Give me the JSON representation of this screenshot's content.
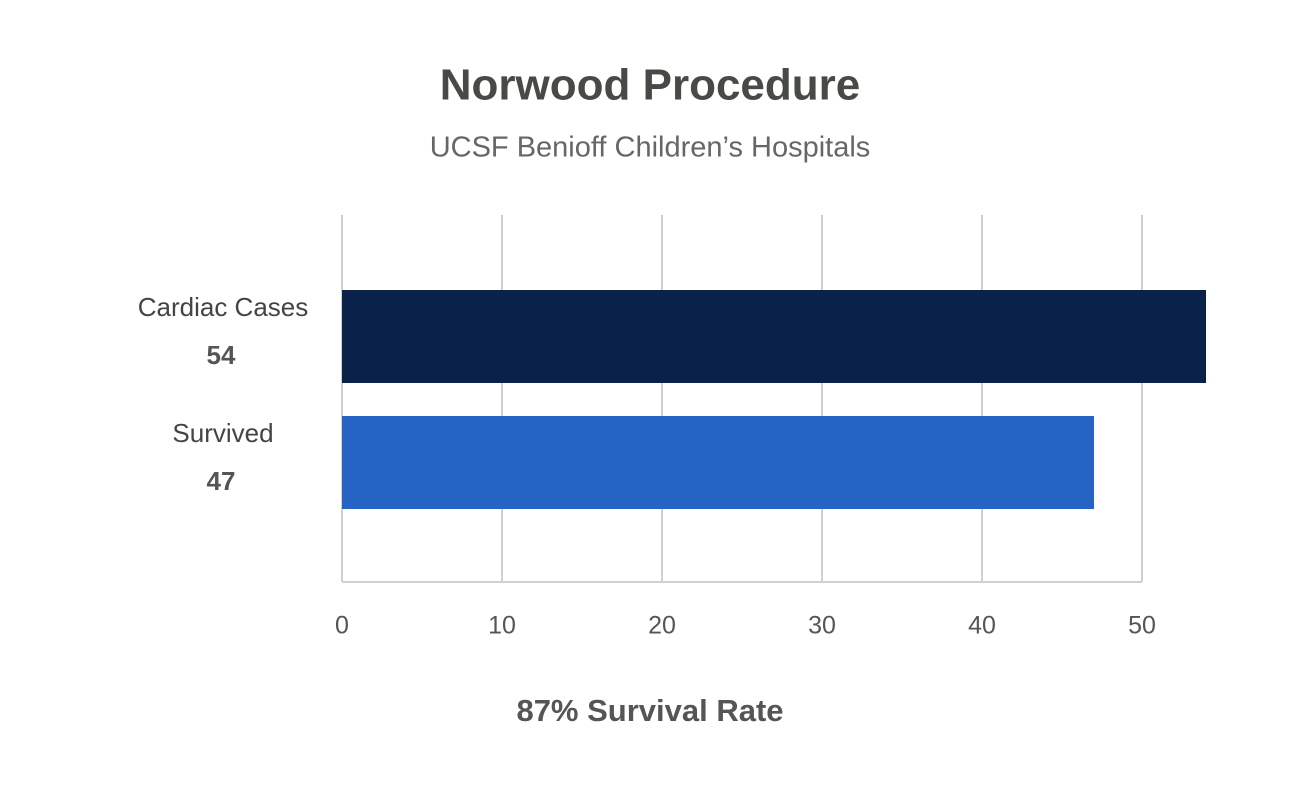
{
  "chart_data": {
    "type": "bar",
    "orientation": "horizontal",
    "title": "Norwood Procedure",
    "subtitle": "UCSF Benioff Children’s Hospitals",
    "categories": [
      "Cardiac Cases",
      "Survived"
    ],
    "values": [
      54,
      47
    ],
    "colors": [
      "#0a214a",
      "#2563c5"
    ],
    "xlim": [
      0,
      50
    ],
    "xticks": [
      0,
      10,
      20,
      30,
      40,
      50
    ],
    "grid": true,
    "annotation": "87% Survival Rate"
  }
}
